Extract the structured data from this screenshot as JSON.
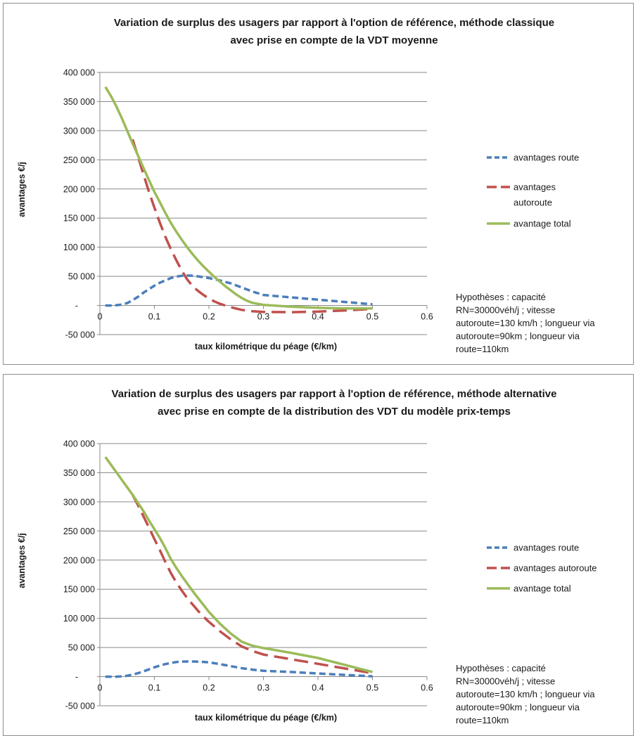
{
  "chart_data": [
    {
      "type": "line",
      "title": "Variation de surplus des usagers par rapport à l'option de référence, méthode classique avec prise en compte de la VDT moyenne",
      "title_lines": [
        "Variation de surplus des usagers par rapport à l'option de référence, méthode classique",
        "avec prise en compte de la VDT moyenne"
      ],
      "xlabel": "taux kilométrique du péage (€/km)",
      "ylabel": "avantages €/j",
      "xlim": [
        0,
        0.6
      ],
      "ylim": [
        -50000,
        400000
      ],
      "x_ticks": [
        0,
        0.1,
        0.2,
        0.3,
        0.4,
        0.5,
        0.6
      ],
      "x_tick_labels": [
        "0",
        "0.1",
        "0.2",
        "0.3",
        "0.4",
        "0.5",
        "0.6"
      ],
      "y_ticks": [
        -50000,
        0,
        50000,
        100000,
        150000,
        200000,
        250000,
        300000,
        350000,
        400000
      ],
      "y_tick_labels": [
        "-50 000",
        "-",
        "50 000",
        "100 000",
        "150 000",
        "200 000",
        "250 000",
        "300 000",
        "350 000",
        "400 000"
      ],
      "grid": "horizontal",
      "legend_position": "right",
      "series": [
        {
          "name": "avantages route",
          "legend_lines": [
            "avantages route"
          ],
          "color": "#4a7ebb",
          "style": "dashed-short",
          "x": [
            0.01,
            0.02,
            0.03,
            0.04,
            0.05,
            0.06,
            0.07,
            0.08,
            0.09,
            0.1,
            0.11,
            0.12,
            0.13,
            0.14,
            0.15,
            0.16,
            0.17,
            0.18,
            0.19,
            0.2,
            0.22,
            0.24,
            0.26,
            0.28,
            0.3,
            0.35,
            0.4,
            0.45,
            0.5
          ],
          "y": [
            0,
            0,
            500,
            1500,
            4000,
            9000,
            15000,
            22000,
            28000,
            34000,
            39000,
            43000,
            47000,
            49500,
            51000,
            51500,
            51000,
            50000,
            48500,
            47000,
            43000,
            38000,
            31000,
            24000,
            18000,
            14000,
            10000,
            6000,
            2000
          ]
        },
        {
          "name": "avantages autoroute",
          "legend_lines": [
            "avantages",
            "autoroute"
          ],
          "color": "#c0504d",
          "style": "dashed-long",
          "x": [
            0.06,
            0.07,
            0.08,
            0.09,
            0.1,
            0.11,
            0.12,
            0.13,
            0.14,
            0.15,
            0.16,
            0.17,
            0.18,
            0.19,
            0.2,
            0.21,
            0.22,
            0.23,
            0.24,
            0.26,
            0.28,
            0.3,
            0.35,
            0.4,
            0.45,
            0.5
          ],
          "y": [
            285000,
            255000,
            225000,
            195000,
            168000,
            142000,
            118000,
            97000,
            78000,
            60000,
            45000,
            33000,
            25000,
            18000,
            12000,
            7000,
            3000,
            0,
            -3000,
            -7500,
            -10000,
            -11000,
            -11500,
            -10500,
            -8500,
            -6000
          ]
        },
        {
          "name": "avantage total",
          "legend_lines": [
            "avantage total"
          ],
          "color": "#9bbb59",
          "style": "solid",
          "x": [
            0.01,
            0.02,
            0.03,
            0.04,
            0.05,
            0.06,
            0.07,
            0.08,
            0.09,
            0.1,
            0.11,
            0.12,
            0.13,
            0.14,
            0.15,
            0.16,
            0.17,
            0.18,
            0.19,
            0.2,
            0.21,
            0.22,
            0.23,
            0.24,
            0.25,
            0.26,
            0.27,
            0.28,
            0.3,
            0.35,
            0.4,
            0.45,
            0.5
          ],
          "y": [
            375000,
            360000,
            342000,
            322000,
            300000,
            278000,
            257000,
            236000,
            215000,
            195000,
            177000,
            159000,
            142000,
            127000,
            113000,
            100000,
            88000,
            77000,
            67000,
            58000,
            49000,
            41000,
            33000,
            26000,
            19000,
            13000,
            8000,
            4500,
            1000,
            -2000,
            -4000,
            -5000,
            -5000
          ]
        }
      ],
      "annotation_lines": [
        "Hypothèses : capacité",
        "RN=30000véh/j ; vitesse",
        "autoroute=130 km/h ; longueur via",
        "autoroute=90km ; longueur via",
        "route=110km"
      ]
    },
    {
      "type": "line",
      "title": "Variation de surplus des usagers par rapport à l'option de référence, méthode alternative avec prise en compte de la distribution des VDT du modèle prix-temps",
      "title_lines": [
        "Variation de surplus des usagers par rapport à l'option de référence, méthode alternative",
        "avec prise en compte de la distribution des VDT du modèle prix-temps"
      ],
      "xlabel": "taux kilométrique du péage (€/km)",
      "ylabel": "avantages €/j",
      "xlim": [
        0,
        0.6
      ],
      "ylim": [
        -50000,
        400000
      ],
      "x_ticks": [
        0,
        0.1,
        0.2,
        0.3,
        0.4,
        0.5,
        0.6
      ],
      "x_tick_labels": [
        "0",
        "0.1",
        "0.2",
        "0.3",
        "0.4",
        "0.5",
        "0.6"
      ],
      "y_ticks": [
        -50000,
        0,
        50000,
        100000,
        150000,
        200000,
        250000,
        300000,
        350000,
        400000
      ],
      "y_tick_labels": [
        "-50 000",
        "-",
        "50 000",
        "100 000",
        "150 000",
        "200 000",
        "250 000",
        "300 000",
        "350 000",
        "400 000"
      ],
      "grid": "horizontal",
      "legend_position": "right",
      "series": [
        {
          "name": "avantages route",
          "legend_lines": [
            "avantages route"
          ],
          "color": "#4a7ebb",
          "style": "dashed-short",
          "x": [
            0.01,
            0.02,
            0.03,
            0.04,
            0.05,
            0.06,
            0.07,
            0.08,
            0.09,
            0.1,
            0.11,
            0.12,
            0.13,
            0.14,
            0.15,
            0.16,
            0.17,
            0.18,
            0.19,
            0.2,
            0.22,
            0.24,
            0.26,
            0.28,
            0.3,
            0.35,
            0.4,
            0.45,
            0.5
          ],
          "y": [
            0,
            0,
            0,
            500,
            1500,
            3500,
            6000,
            9000,
            12500,
            16000,
            19000,
            21500,
            23500,
            25000,
            25800,
            26000,
            26000,
            25800,
            25300,
            24500,
            21500,
            18000,
            14500,
            12000,
            10000,
            8000,
            5500,
            3000,
            500
          ]
        },
        {
          "name": "avantages autoroute",
          "legend_lines": [
            "avantages autoroute"
          ],
          "color": "#c0504d",
          "style": "dashed-long",
          "x": [
            0.06,
            0.07,
            0.08,
            0.09,
            0.1,
            0.11,
            0.12,
            0.13,
            0.14,
            0.15,
            0.16,
            0.17,
            0.18,
            0.19,
            0.2,
            0.22,
            0.24,
            0.26,
            0.28,
            0.3,
            0.35,
            0.4,
            0.45,
            0.5
          ],
          "y": [
            312000,
            294000,
            275000,
            256000,
            236000,
            217000,
            197000,
            178000,
            162000,
            148000,
            135000,
            124000,
            113000,
            103000,
            94000,
            78000,
            64000,
            52000,
            44000,
            38000,
            30000,
            22000,
            14000,
            6000
          ]
        },
        {
          "name": "avantage total",
          "legend_lines": [
            "avantage total"
          ],
          "color": "#9bbb59",
          "style": "solid",
          "x": [
            0.01,
            0.02,
            0.03,
            0.04,
            0.05,
            0.06,
            0.07,
            0.08,
            0.09,
            0.1,
            0.11,
            0.12,
            0.13,
            0.14,
            0.15,
            0.16,
            0.17,
            0.18,
            0.19,
            0.2,
            0.22,
            0.24,
            0.26,
            0.28,
            0.3,
            0.35,
            0.4,
            0.45,
            0.5
          ],
          "y": [
            377000,
            364000,
            351000,
            338000,
            325000,
            312000,
            298000,
            284000,
            268000,
            253000,
            238000,
            221000,
            202000,
            187000,
            173000,
            160000,
            147000,
            135000,
            123000,
            111000,
            91000,
            74000,
            60000,
            53000,
            49000,
            41000,
            32000,
            20000,
            8000
          ]
        }
      ],
      "annotation_lines": [
        "Hypothèses : capacité",
        "RN=30000véh/j ; vitesse",
        "autoroute=130 km/h ; longueur via",
        "autoroute=90km ; longueur via",
        "route=110km"
      ]
    }
  ]
}
